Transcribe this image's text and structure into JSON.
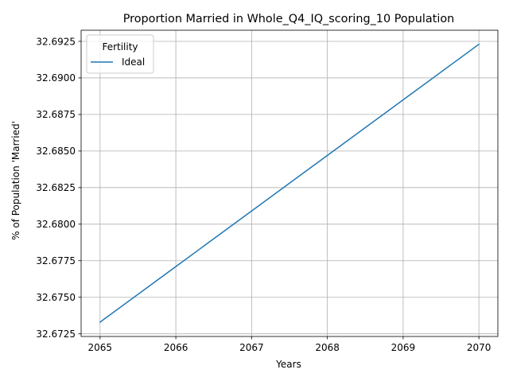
{
  "chart_data": {
    "type": "line",
    "title": "Proportion Married in Whole_Q4_IQ_scoring_10 Population",
    "xlabel": "Years",
    "ylabel": "% of Population 'Married'",
    "x": [
      2065,
      2066,
      2067,
      2068,
      2069,
      2070
    ],
    "xlim": [
      2064.75,
      2070.25
    ],
    "ylim": [
      32.67232,
      32.69326
    ],
    "x_ticks": [
      "2065",
      "2066",
      "2067",
      "2068",
      "2069",
      "2070"
    ],
    "x_tick_values": [
      2065,
      2066,
      2067,
      2068,
      2069,
      2070
    ],
    "y_ticks": [
      "32.6725",
      "32.6750",
      "32.6775",
      "32.6800",
      "32.6825",
      "32.6850",
      "32.6875",
      "32.6900",
      "32.6925"
    ],
    "y_tick_values": [
      32.6725,
      32.675,
      32.6775,
      32.68,
      32.6825,
      32.685,
      32.6875,
      32.69,
      32.6925
    ],
    "grid": true,
    "legend": {
      "title": "Fertility",
      "placement": "top-left"
    },
    "series": [
      {
        "name": "Ideal",
        "color": "#1f77b4",
        "values": [
          32.6733,
          32.6771,
          32.6809,
          32.6847,
          32.6885,
          32.6923
        ]
      }
    ]
  }
}
